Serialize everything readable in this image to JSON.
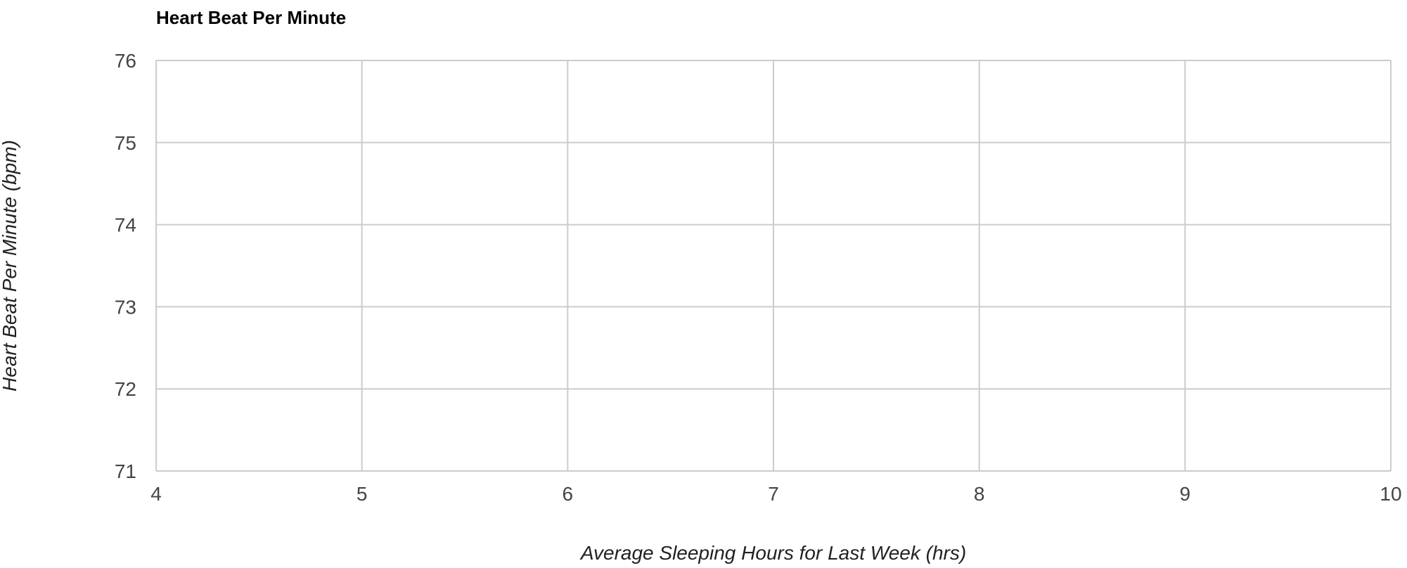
{
  "chart_data": {
    "type": "scatter",
    "title": "Heart Beat Per Minute",
    "xlabel": "Average Sleeping Hours for Last Week (hrs)",
    "ylabel": "Heart Beat Per Minute (bpm)",
    "xlim": [
      4,
      10
    ],
    "ylim": [
      71,
      76
    ],
    "x_ticks": [
      "4",
      "5",
      "6",
      "7",
      "8",
      "9",
      "10"
    ],
    "y_ticks": [
      "71",
      "72",
      "73",
      "74",
      "75",
      "76"
    ],
    "grid": true,
    "legend": "none",
    "series": [
      {
        "points": []
      }
    ],
    "colors": {
      "grid": "#cccccc",
      "tick_text": "#444444",
      "title": "#000000"
    }
  }
}
